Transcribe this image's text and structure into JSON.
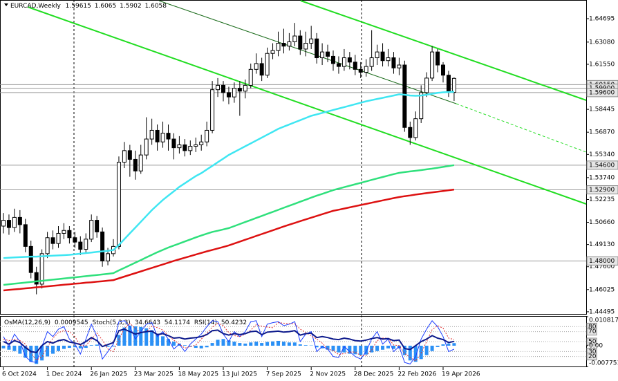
{
  "chart_data": [
    {
      "type": "candlestick",
      "symbol": "EURCAD,Weekly",
      "categories": [
        "6 Oct 2024",
        null,
        null,
        null,
        null,
        null,
        null,
        null,
        "1 Dec 2024",
        null,
        null,
        null,
        null,
        null,
        null,
        null,
        "26 Jan 2025",
        null,
        null,
        null,
        null,
        null,
        null,
        null,
        "23 Mar 2025",
        null,
        null,
        null,
        null,
        null,
        null,
        null,
        "18 May 2025",
        null,
        null,
        null,
        null,
        null,
        null,
        null,
        "13 Jul 2025",
        null,
        null,
        null,
        null,
        null,
        null,
        null,
        "7 Sep 2025",
        null,
        null,
        null,
        null,
        null,
        null,
        null,
        "2 Nov 2025",
        null,
        null,
        null,
        null,
        null,
        null,
        null,
        "28 Dec 2025",
        null,
        null,
        null,
        null,
        null,
        null,
        null,
        "22 Feb 2026",
        null,
        null,
        null,
        null,
        null,
        null,
        null,
        "19 Apr 2026",
        null,
        null
      ],
      "open": [
        1.504,
        1.508,
        1.503,
        1.51,
        1.505,
        1.49,
        1.472,
        1.464,
        1.485,
        1.496,
        1.492,
        1.499,
        1.501,
        1.496,
        1.493,
        1.488,
        1.495,
        1.508,
        1.5,
        1.48,
        1.485,
        1.49,
        1.548,
        1.556,
        1.55,
        1.542,
        1.553,
        1.564,
        1.57,
        1.562,
        1.568,
        1.564,
        1.558,
        1.56,
        1.556,
        1.559,
        1.56,
        1.562,
        1.57,
        1.598,
        1.601,
        1.596,
        1.593,
        1.599,
        1.597,
        1.601,
        1.612,
        1.616,
        1.608,
        1.623,
        1.625,
        1.63,
        1.628,
        1.631,
        1.635,
        1.626,
        1.63,
        1.633,
        1.62,
        1.624,
        1.621,
        1.616,
        1.614,
        1.62,
        1.617,
        1.612,
        1.61,
        1.614,
        1.62,
        1.624,
        1.618,
        1.62,
        1.613,
        1.615,
        1.572,
        1.565,
        1.578,
        1.596,
        1.606,
        1.624,
        1.615,
        1.608,
        1.59615
      ],
      "high": [
        1.513,
        1.512,
        1.516,
        1.515,
        1.509,
        1.494,
        1.476,
        1.488,
        1.5,
        1.501,
        1.504,
        1.506,
        1.504,
        1.5,
        1.497,
        1.499,
        1.512,
        1.511,
        1.503,
        1.489,
        1.495,
        1.552,
        1.562,
        1.56,
        1.556,
        1.56,
        1.579,
        1.578,
        1.574,
        1.576,
        1.574,
        1.568,
        1.566,
        1.564,
        1.563,
        1.565,
        1.567,
        1.576,
        1.604,
        1.606,
        1.604,
        1.6,
        1.603,
        1.604,
        1.605,
        1.616,
        1.623,
        1.62,
        1.627,
        1.63,
        1.638,
        1.64,
        1.637,
        1.644,
        1.639,
        1.638,
        1.642,
        1.637,
        1.63,
        1.629,
        1.625,
        1.621,
        1.626,
        1.624,
        1.622,
        1.617,
        1.619,
        1.639,
        1.629,
        1.63,
        1.626,
        1.624,
        1.62,
        1.618,
        1.576,
        1.583,
        1.601,
        1.61,
        1.628,
        1.626,
        1.617,
        1.611,
        1.6065
      ],
      "low": [
        1.499,
        1.498,
        1.5,
        1.499,
        1.486,
        1.468,
        1.457,
        1.461,
        1.482,
        1.488,
        1.489,
        1.495,
        1.492,
        1.489,
        1.484,
        1.485,
        1.493,
        1.496,
        1.476,
        1.477,
        1.483,
        1.488,
        1.544,
        1.538,
        1.536,
        1.54,
        1.55,
        1.56,
        1.556,
        1.558,
        1.556,
        1.55,
        1.554,
        1.552,
        1.553,
        1.555,
        1.556,
        1.559,
        1.568,
        1.593,
        1.59,
        1.588,
        1.589,
        1.58,
        1.592,
        1.599,
        1.609,
        1.604,
        1.606,
        1.619,
        1.621,
        1.623,
        1.625,
        1.628,
        1.622,
        1.621,
        1.626,
        1.616,
        1.615,
        1.617,
        1.611,
        1.609,
        1.611,
        1.612,
        1.608,
        1.606,
        1.607,
        1.611,
        1.615,
        1.614,
        1.614,
        1.609,
        1.608,
        1.569,
        1.56,
        1.563,
        1.575,
        1.593,
        1.604,
        1.61,
        1.603,
        1.593,
        1.5902
      ],
      "close": [
        1.508,
        1.503,
        1.51,
        1.505,
        1.49,
        1.472,
        1.464,
        1.485,
        1.496,
        1.492,
        1.499,
        1.501,
        1.496,
        1.493,
        1.488,
        1.495,
        1.508,
        1.5,
        1.48,
        1.485,
        1.49,
        1.548,
        1.556,
        1.55,
        1.542,
        1.553,
        1.564,
        1.57,
        1.562,
        1.568,
        1.564,
        1.558,
        1.56,
        1.556,
        1.559,
        1.56,
        1.562,
        1.57,
        1.598,
        1.601,
        1.596,
        1.593,
        1.599,
        1.597,
        1.601,
        1.612,
        1.616,
        1.608,
        1.623,
        1.625,
        1.63,
        1.628,
        1.631,
        1.635,
        1.626,
        1.63,
        1.633,
        1.62,
        1.624,
        1.621,
        1.616,
        1.614,
        1.62,
        1.617,
        1.612,
        1.61,
        1.614,
        1.62,
        1.624,
        1.618,
        1.62,
        1.613,
        1.615,
        1.572,
        1.565,
        1.578,
        1.596,
        1.606,
        1.624,
        1.615,
        1.608,
        1.59615,
        1.6058
      ],
      "overlays": [
        {
          "color": "#3fe6f2",
          "values": [
            1.482,
            1.4822,
            1.4824,
            1.4826,
            1.4828,
            1.483,
            1.483,
            1.4832,
            1.4834,
            1.4836,
            1.4838,
            1.484,
            1.4842,
            1.4846,
            1.485,
            1.4854,
            1.4858,
            1.4862,
            1.4866,
            1.487,
            1.4875,
            1.491,
            1.495,
            1.499,
            1.503,
            1.507,
            1.511,
            1.515,
            1.5185,
            1.522,
            1.525,
            1.528,
            1.531,
            1.5335,
            1.536,
            1.5385,
            1.5405,
            1.543,
            1.5455,
            1.548,
            1.5505,
            1.553,
            1.555,
            1.557,
            1.559,
            1.561,
            1.563,
            1.565,
            1.567,
            1.569,
            1.571,
            1.5725,
            1.574,
            1.5755,
            1.577,
            1.5785,
            1.58,
            1.581,
            1.582,
            1.583,
            1.584,
            1.585,
            1.586,
            1.587,
            1.588,
            1.589,
            1.59,
            1.5908,
            1.5916,
            1.5924,
            1.5932,
            1.594,
            1.5948,
            1.5945,
            1.594,
            1.5938,
            1.594,
            1.5945,
            1.5952,
            1.5958,
            1.5962,
            1.5964,
            1.5966
          ]
        },
        {
          "color": "#2fe07c",
          "values": [
            1.4635,
            1.4639,
            1.4643,
            1.4647,
            1.4651,
            1.4655,
            1.4659,
            1.4663,
            1.4667,
            1.4671,
            1.4675,
            1.4679,
            1.4683,
            1.4687,
            1.4691,
            1.4695,
            1.4699,
            1.4703,
            1.4707,
            1.4711,
            1.4716,
            1.4735,
            1.4752,
            1.477,
            1.4788,
            1.4806,
            1.4824,
            1.4842,
            1.486,
            1.4876,
            1.4892,
            1.4906,
            1.492,
            1.4934,
            1.4948,
            1.4962,
            1.4975,
            1.4988,
            1.5,
            1.5008,
            1.5017,
            1.5026,
            1.504,
            1.5054,
            1.5068,
            1.5082,
            1.5096,
            1.511,
            1.5124,
            1.5138,
            1.5152,
            1.5166,
            1.518,
            1.5194,
            1.5208,
            1.5222,
            1.5236,
            1.525,
            1.5262,
            1.5275,
            1.5288,
            1.5298,
            1.5308,
            1.5318,
            1.5328,
            1.5338,
            1.5348,
            1.5358,
            1.5368,
            1.5378,
            1.5388,
            1.5398,
            1.5407,
            1.5412,
            1.5417,
            1.5421,
            1.5426,
            1.5431,
            1.5436,
            1.5442,
            1.5448,
            1.5454,
            1.546
          ]
        },
        {
          "color": "#dd1111",
          "values": [
            1.4597,
            1.46,
            1.4604,
            1.4607,
            1.4611,
            1.4614,
            1.4618,
            1.4621,
            1.4625,
            1.4628,
            1.4632,
            1.4636,
            1.4639,
            1.4643,
            1.4646,
            1.465,
            1.4653,
            1.4657,
            1.466,
            1.4664,
            1.4668,
            1.468,
            1.4692,
            1.4704,
            1.4716,
            1.4728,
            1.474,
            1.4752,
            1.4764,
            1.4776,
            1.4788,
            1.48,
            1.4811,
            1.4822,
            1.4833,
            1.4844,
            1.4855,
            1.4866,
            1.4876,
            1.4886,
            1.4896,
            1.4907,
            1.492,
            1.4933,
            1.4946,
            1.4959,
            1.4972,
            1.4985,
            1.4998,
            1.5011,
            1.5024,
            1.5037,
            1.505,
            1.5062,
            1.5074,
            1.5086,
            1.5098,
            1.511,
            1.5122,
            1.5134,
            1.5145,
            1.5153,
            1.5161,
            1.5169,
            1.5177,
            1.5185,
            1.5193,
            1.5201,
            1.5209,
            1.5217,
            1.5225,
            1.5233,
            1.524,
            1.5246,
            1.5251,
            1.5257,
            1.5262,
            1.5267,
            1.5272,
            1.5277,
            1.5282,
            1.5287,
            1.5292
          ]
        }
      ],
      "levels": [
        {
          "value": 1.6015,
          "label": "1.60150"
        },
        {
          "value": 1.599,
          "label": "1.59900"
        },
        {
          "value": 1.596,
          "label": "1.59600"
        },
        {
          "value": 1.546,
          "label": "1.54600"
        },
        {
          "value": 1.529,
          "label": "1.52900"
        },
        {
          "value": 1.48,
          "label": "1.48000"
        }
      ],
      "ylim": [
        1.443,
        1.6598
      ],
      "yticks": [
        1.64695,
        {
          "value": 1.6308,
          "label": "1.63080"
        },
        {
          "value": 1.6155,
          "label": "1.61550"
        },
        1.58445,
        {
          "value": 1.5687,
          "label": "1.56870"
        },
        {
          "value": 1.5534,
          "label": "1.55340"
        },
        {
          "value": 1.5374,
          "label": "1.53740"
        },
        1.52235,
        {
          "value": 1.5066,
          "label": "1.50660"
        },
        {
          "value": 1.4913,
          "label": "1.49130"
        },
        {
          "value": 1.476,
          "label": "1.47600"
        },
        1.46025,
        1.44495
      ]
    },
    {
      "type": "indicator",
      "series": [
        {
          "name": "OsMA(12,26,9)",
          "color": "#2b90f5",
          "values": [
            -0.001,
            -0.0015,
            -0.002,
            -0.003,
            -0.0045,
            -0.006,
            -0.0068,
            -0.0055,
            -0.004,
            -0.003,
            -0.002,
            -0.0012,
            -0.0008,
            -0.0006,
            -0.001,
            -0.0008,
            0.0002,
            0.0004,
            -0.0002,
            -0.0004,
            -0.0003,
            0.004,
            0.0068,
            0.0075,
            0.0072,
            0.007,
            0.0065,
            0.0058,
            0.0045,
            0.0035,
            0.0025,
            0.0015,
            0.0008,
            0.0002,
            -0.0004,
            -0.0008,
            -0.001,
            -0.0006,
            0.001,
            0.0022,
            0.0025,
            0.002,
            0.0015,
            0.001,
            0.0008,
            0.0012,
            0.0015,
            0.001,
            0.0014,
            0.0016,
            0.0018,
            0.0015,
            0.0012,
            0.0012,
            0.0005,
            0.0002,
            0.0001,
            -0.0006,
            -0.001,
            -0.0015,
            -0.002,
            -0.0025,
            -0.0025,
            -0.003,
            -0.0032,
            -0.0035,
            -0.0033,
            -0.0025,
            -0.002,
            -0.0015,
            -0.001,
            -0.0012,
            -0.001,
            -0.0035,
            -0.0055,
            -0.006,
            -0.005,
            -0.0035,
            -0.002,
            -0.0005,
            0.0005,
            0.0008,
            0.0009545
          ]
        },
        {
          "name": "Stoch(5,3,3)",
          "color": "#1a3cff",
          "axis": "y2",
          "values": [
            60,
            40,
            65,
            50,
            20,
            10,
            8,
            40,
            70,
            60,
            75,
            80,
            55,
            45,
            25,
            55,
            85,
            60,
            15,
            30,
            45,
            90,
            92,
            80,
            55,
            70,
            85,
            88,
            60,
            70,
            55,
            35,
            45,
            30,
            45,
            55,
            65,
            80,
            92,
            90,
            65,
            50,
            70,
            60,
            70,
            90,
            92,
            60,
            85,
            88,
            90,
            82,
            85,
            90,
            50,
            65,
            70,
            30,
            40,
            35,
            20,
            18,
            40,
            30,
            20,
            15,
            30,
            55,
            70,
            45,
            55,
            30,
            40,
            8,
            5,
            20,
            55,
            75,
            92,
            80,
            60,
            30,
            34.6643
          ],
          "signal": [
            55,
            52,
            55,
            52,
            45,
            27,
            13,
            19,
            39,
            57,
            68,
            72,
            70,
            60,
            42,
            42,
            55,
            67,
            53,
            35,
            30,
            55,
            76,
            87,
            76,
            68,
            70,
            81,
            78,
            73,
            62,
            53,
            45,
            37,
            40,
            43,
            55,
            67,
            79,
            87,
            82,
            68,
            62,
            60,
            65,
            73,
            84,
            81,
            79,
            78,
            88,
            87,
            86,
            86,
            75,
            68,
            62,
            55,
            47,
            35,
            32,
            24,
            26,
            29,
            29,
            22,
            22,
            33,
            52,
            57,
            57,
            43,
            42,
            26,
            18,
            11,
            27,
            50,
            74,
            82,
            77,
            57,
            54.1174
          ],
          "signal_color": "#e03030"
        },
        {
          "name": "RSI(14)",
          "color": "#0d1a8c",
          "axis": "y2",
          "values": [
            50,
            45,
            52,
            48,
            38,
            30,
            28,
            42,
            50,
            47,
            52,
            54,
            49,
            47,
            44,
            50,
            58,
            52,
            40,
            44,
            48,
            72,
            75,
            70,
            65,
            68,
            70,
            71,
            64,
            66,
            62,
            57,
            58,
            55,
            57,
            58,
            60,
            64,
            72,
            73,
            66,
            63,
            66,
            64,
            66,
            70,
            71,
            64,
            69,
            70,
            71,
            69,
            70,
            72,
            63,
            66,
            67,
            58,
            60,
            58,
            55,
            54,
            57,
            55,
            52,
            51,
            53,
            56,
            58,
            55,
            56,
            52,
            53,
            36,
            34,
            42,
            50,
            55,
            62,
            57,
            54,
            48,
            50.4232
          ]
        }
      ],
      "ylim": [
        -0.007751,
        0.010817
      ],
      "yticks": [
        0.010817,
        {
          "value": 0,
          "label": "0.00"
        },
        -0.007751
      ],
      "y2lim": [
        0,
        100
      ],
      "y2ticks": [
        80,
        70,
        50,
        30,
        20
      ]
    }
  ]
}
